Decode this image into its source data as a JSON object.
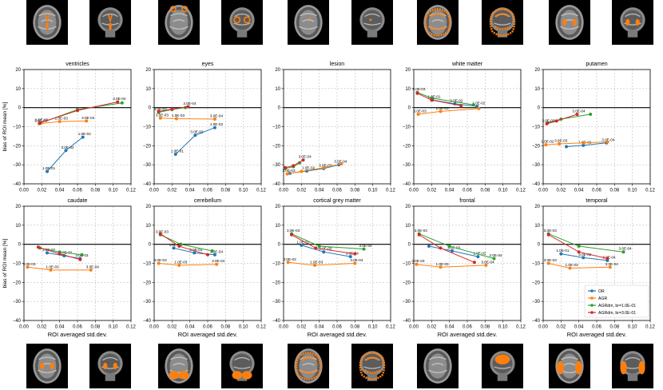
{
  "colors": {
    "series": [
      "#1f77b4",
      "#ff7f0e",
      "#2ca02c",
      "#d62728"
    ],
    "roi_overlay": "#ff7f0e",
    "grid": "#b0b0b0",
    "zero_line": "#000000"
  },
  "thumbnails_top": [
    {
      "name": "ventricles-axial",
      "view": "axial",
      "region": "ventricles"
    },
    {
      "name": "ventricles-coronal",
      "view": "coronal",
      "region": "ventricles"
    },
    {
      "name": "eyes-axial",
      "view": "axial-low",
      "region": "eyes"
    },
    {
      "name": "eyes-coronal",
      "view": "coronal-front",
      "region": "eyes"
    },
    {
      "name": "lesion-axial",
      "view": "axial",
      "region": "lesion"
    },
    {
      "name": "lesion-coronal",
      "view": "coronal",
      "region": "lesion"
    },
    {
      "name": "white-matter-axial",
      "view": "axial",
      "region": "white-matter"
    },
    {
      "name": "white-matter-coronal",
      "view": "coronal",
      "region": "white-matter"
    },
    {
      "name": "putamen-axial",
      "view": "axial",
      "region": "putamen"
    },
    {
      "name": "putamen-coronal",
      "view": "coronal",
      "region": "putamen"
    }
  ],
  "thumbnails_bottom": [
    {
      "name": "caudate-axial",
      "view": "axial",
      "region": "caudate"
    },
    {
      "name": "caudate-coronal",
      "view": "coronal",
      "region": "caudate"
    },
    {
      "name": "cerebellum-axial",
      "view": "axial-low",
      "region": "cerebellum"
    },
    {
      "name": "cerebellum-coronal",
      "view": "coronal",
      "region": "cerebellum"
    },
    {
      "name": "cortical-grey-matter-axial",
      "view": "axial",
      "region": "cortex"
    },
    {
      "name": "cortical-grey-matter-coronal",
      "view": "coronal",
      "region": "cortex"
    },
    {
      "name": "frontal-axial",
      "view": "axial",
      "region": "none"
    },
    {
      "name": "frontal-coronal",
      "view": "coronal-small",
      "region": "frontal"
    },
    {
      "name": "temporal-axial",
      "view": "axial",
      "region": "temporal"
    },
    {
      "name": "temporal-coronal",
      "view": "coronal",
      "region": "temporal"
    }
  ],
  "chart_data": {
    "type": "line",
    "xlabel": "ROI averaged std.dev.",
    "ylabel": "bias of ROI mean [%]",
    "xlim": [
      0,
      0.12
    ],
    "ylim": [
      -40,
      20
    ],
    "xticks": [
      "0.00",
      "0.02",
      "0.04",
      "0.06",
      "0.08",
      "0.10",
      "0.12"
    ],
    "yticks": [
      "−40",
      "−30",
      "−20",
      "−10",
      "0",
      "10",
      "20"
    ],
    "grid": true,
    "legend": {
      "placement": "lower-right of last panel",
      "entries": [
        "OR",
        "AGR",
        "AGRdm, br=1.0E-01",
        "AGRdm, br=3.0E-01"
      ]
    },
    "panels": [
      {
        "title": "ventricles",
        "series": [
          {
            "points": [
              [
                0.026,
                -33.5
              ],
              [
                0.047,
                -22.5
              ],
              [
                0.066,
                -15.5
              ]
            ],
            "labels": [
              "1.0E-01",
              "3.0E-02",
              "1.0E-02"
            ]
          },
          {
            "points": [
              [
                0.017,
                -8.5
              ],
              [
                0.04,
                -7.3
              ],
              [
                0.07,
                -7.0
              ]
            ],
            "labels": [
              "3.0E-03",
              "1.0E-03",
              "3.0E-04"
            ]
          },
          {
            "points": [
              [
                0.018,
                -8.2
              ],
              [
                0.06,
                -1.0
              ],
              [
                0.11,
                2.5
              ]
            ],
            "labels": [
              "1.0E-02",
              "",
              ""
            ]
          },
          {
            "points": [
              [
                0.018,
                -8.0
              ],
              [
                0.06,
                -1.5
              ],
              [
                0.105,
                3.0
              ]
            ],
            "labels": [
              "",
              "",
              "3.0E-04"
            ]
          }
        ]
      },
      {
        "title": "eyes",
        "series": [
          {
            "points": [
              [
                0.024,
                -24.5
              ],
              [
                0.046,
                -14.5
              ],
              [
                0.068,
                -10.5
              ]
            ],
            "labels": [
              "1.0E-01",
              "3.0E-02",
              "1.0E-02"
            ]
          },
          {
            "points": [
              [
                0.007,
                -5.5
              ],
              [
                0.025,
                -5.8
              ],
              [
                0.068,
                -6.0
              ]
            ],
            "labels": [
              "3.0E-03",
              "1.0E-03",
              "3.0E-04"
            ]
          },
          {
            "points": [
              [
                0.005,
                -2.5
              ],
              [
                0.02,
                -1.0
              ],
              [
                0.035,
                0.0
              ]
            ],
            "labels": [
              "3.0E-03",
              "",
              ""
            ]
          },
          {
            "points": [
              [
                0.005,
                -2.0
              ],
              [
                0.02,
                -0.8
              ],
              [
                0.038,
                0.5
              ]
            ],
            "labels": [
              "",
              "",
              "3.0E-04"
            ]
          }
        ]
      },
      {
        "title": "lesion",
        "series": [
          {
            "points": [
              [
                0.007,
                -34.5
              ],
              [
                0.026,
                -33.3
              ],
              [
                0.045,
                -32.0
              ],
              [
                0.062,
                -30.0
              ]
            ],
            "labels": [
              "",
              "1.0E-02",
              "3.0E-03",
              "3.0E-04"
            ]
          },
          {
            "points": [
              [
                0.004,
                -34.8
              ],
              [
                0.02,
                -33.5
              ],
              [
                0.045,
                -31.5
              ],
              [
                0.065,
                -29.5
              ]
            ],
            "labels": [
              "3.0E-03",
              "",
              "",
              ""
            ]
          },
          {
            "points": [
              [
                0.002,
                -32.0
              ],
              [
                0.011,
                -31.0
              ],
              [
                0.018,
                -29.0
              ]
            ],
            "labels": [
              "",
              "",
              ""
            ]
          },
          {
            "points": [
              [
                0.002,
                -31.5
              ],
              [
                0.011,
                -30.5
              ],
              [
                0.022,
                -27.5
              ]
            ],
            "labels": [
              "",
              "",
              "3.0E-04"
            ]
          }
        ]
      },
      {
        "title": "white matter",
        "series": [
          {
            "points": [
              [
                0.021,
                4.0
              ],
              [
                0.046,
                2.0
              ],
              [
                0.071,
                0.7
              ]
            ],
            "labels": [
              "1.0E-01",
              "3.0E-02",
              "1.0E-02"
            ]
          },
          {
            "points": [
              [
                0.005,
                -3.5
              ],
              [
                0.03,
                -2.0
              ],
              [
                0.073,
                -0.5
              ]
            ],
            "labels": [
              "3.0E-03",
              "1.0E-03",
              ""
            ]
          },
          {
            "points": [
              [
                0.004,
                8.0
              ],
              [
                0.02,
                5.0
              ],
              [
                0.067,
                1.5
              ]
            ],
            "labels": [
              "3.0E-03",
              "",
              ""
            ]
          },
          {
            "points": [
              [
                0.004,
                7.5
              ],
              [
                0.02,
                4.0
              ],
              [
                0.053,
                1.0
              ]
            ],
            "labels": [
              "",
              "",
              ""
            ]
          }
        ]
      },
      {
        "title": "putamen",
        "series": [
          {
            "points": [
              [
                0.026,
                -20.5
              ],
              [
                0.045,
                -19.8
              ],
              [
                0.071,
                -18.5
              ]
            ],
            "labels": [
              "",
              "1.0E-02",
              "3.0E-04"
            ]
          },
          {
            "points": [
              [
                0.003,
                -19.5
              ],
              [
                0.018,
                -19.0
              ],
              [
                0.045,
                -18.5
              ],
              [
                0.072,
                -18.0
              ]
            ],
            "labels": [
              "1.0E-02",
              "3.0E-03",
              "",
              ""
            ]
          },
          {
            "points": [
              [
                0.005,
                -8.0
              ],
              [
                0.02,
                -6.0
              ],
              [
                0.053,
                -3.5
              ]
            ],
            "labels": [
              "",
              "",
              ""
            ]
          },
          {
            "points": [
              [
                0.004,
                -8.5
              ],
              [
                0.015,
                -7.0
              ],
              [
                0.038,
                -3.5
              ]
            ],
            "labels": [
              "3.0E-03",
              "",
              "3.0E-04"
            ]
          }
        ]
      },
      {
        "title": "caudate",
        "series": [
          {
            "points": [
              [
                0.026,
                -4.5
              ],
              [
                0.045,
                -6.0
              ],
              [
                0.063,
                -7.5
              ]
            ],
            "labels": [
              "3.0E-02",
              "1.0E-02",
              "3.0E-03"
            ]
          },
          {
            "points": [
              [
                0.004,
                -12.0
              ],
              [
                0.03,
                -13.5
              ],
              [
                0.075,
                -13.5
              ]
            ],
            "labels": [
              "3.0E-03",
              "1.0E-03",
              "3.0E-04"
            ]
          },
          {
            "points": [
              [
                0.018,
                -2.0
              ],
              [
                0.04,
                -4.0
              ],
              [
                0.065,
                -5.5
              ]
            ],
            "labels": [
              "",
              "",
              ""
            ]
          },
          {
            "points": [
              [
                0.016,
                -1.5
              ],
              [
                0.04,
                -5.0
              ],
              [
                0.063,
                -8.0
              ]
            ],
            "labels": [
              "",
              "",
              ""
            ]
          }
        ]
      },
      {
        "title": "cerebellum",
        "series": [
          {
            "points": [
              [
                0.022,
                -2.0
              ],
              [
                0.045,
                -4.5
              ],
              [
                0.068,
                -5.5
              ]
            ],
            "labels": [
              "1.0E-02",
              "3.0E-03",
              "3.0E-04"
            ]
          },
          {
            "points": [
              [
                0.005,
                -10.0
              ],
              [
                0.028,
                -11.0
              ],
              [
                0.07,
                -10.5
              ]
            ],
            "labels": [
              "3.0E-03",
              "1.0E-03",
              "3.0E-04"
            ]
          },
          {
            "points": [
              [
                0.007,
                5.0
              ],
              [
                0.03,
                0.0
              ],
              [
                0.065,
                -3.5
              ]
            ],
            "labels": [
              "3.0E-03",
              "",
              ""
            ]
          },
          {
            "points": [
              [
                0.007,
                5.5
              ],
              [
                0.028,
                -1.0
              ],
              [
                0.06,
                -5.5
              ]
            ],
            "labels": [
              "",
              "",
              ""
            ]
          }
        ]
      },
      {
        "title": "cortical grey matter",
        "series": [
          {
            "points": [
              [
                0.02,
                -0.5
              ],
              [
                0.045,
                -4.0
              ],
              [
                0.075,
                -6.5
              ]
            ],
            "labels": [
              "1.0E-01",
              "3.0E-03",
              "3.0E-04"
            ]
          },
          {
            "points": [
              [
                0.005,
                -9.5
              ],
              [
                0.035,
                -11.0
              ],
              [
                0.08,
                -10.0
              ]
            ],
            "labels": [
              "3.0E-03",
              "1.0E-03",
              "3.0E-04"
            ]
          },
          {
            "points": [
              [
                0.009,
                5.5
              ],
              [
                0.04,
                -1.0
              ],
              [
                0.09,
                -2.5
              ]
            ],
            "labels": [
              "3.0E-03",
              "",
              "3.0E-04"
            ]
          },
          {
            "points": [
              [
                0.009,
                5.0
              ],
              [
                0.036,
                -2.0
              ],
              [
                0.08,
                -5.0
              ]
            ],
            "labels": [
              "",
              "",
              ""
            ]
          }
        ]
      },
      {
        "title": "frontal",
        "series": [
          {
            "points": [
              [
                0.017,
                -1.0
              ],
              [
                0.043,
                -3.5
              ],
              [
                0.072,
                -6.5
              ]
            ],
            "labels": [
              "",
              "3.0E-03",
              "1.0E-02"
            ]
          },
          {
            "points": [
              [
                0.003,
                -10.5
              ],
              [
                0.03,
                -12.0
              ],
              [
                0.081,
                -11.0
              ]
            ],
            "labels": [
              "3.0E-03",
              "1.0E-03",
              "3.0E-04"
            ]
          },
          {
            "points": [
              [
                0.006,
                5.5
              ],
              [
                0.04,
                -1.0
              ],
              [
                0.09,
                -7.5
              ]
            ],
            "labels": [
              "3.0E-03",
              "",
              "3.0E-04"
            ]
          },
          {
            "points": [
              [
                0.006,
                5.0
              ],
              [
                0.03,
                -2.0
              ],
              [
                0.068,
                -9.5
              ]
            ],
            "labels": [
              "",
              "",
              ""
            ]
          }
        ]
      },
      {
        "title": "temporal",
        "series": [
          {
            "points": [
              [
                0.02,
                -5.0
              ],
              [
                0.045,
                -7.0
              ],
              [
                0.072,
                -8.5
              ]
            ],
            "labels": [
              "1.0E-01",
              "3.0E-02",
              "3.0E-04"
            ]
          },
          {
            "points": [
              [
                0.006,
                -10.0
              ],
              [
                0.03,
                -12.5
              ],
              [
                0.075,
                -12.0
              ]
            ],
            "labels": [
              "3.0E-03",
              "1.0E-03",
              "3.0E-04"
            ]
          },
          {
            "points": [
              [
                0.006,
                5.5
              ],
              [
                0.04,
                -1.0
              ],
              [
                0.09,
                -4.0
              ]
            ],
            "labels": [
              "3.0E-03",
              "",
              "3.0E-04"
            ]
          },
          {
            "points": [
              [
                0.006,
                5.0
              ],
              [
                0.04,
                -4.0
              ],
              [
                0.072,
                -7.5
              ]
            ],
            "labels": [
              "",
              "",
              ""
            ]
          }
        ]
      }
    ]
  }
}
